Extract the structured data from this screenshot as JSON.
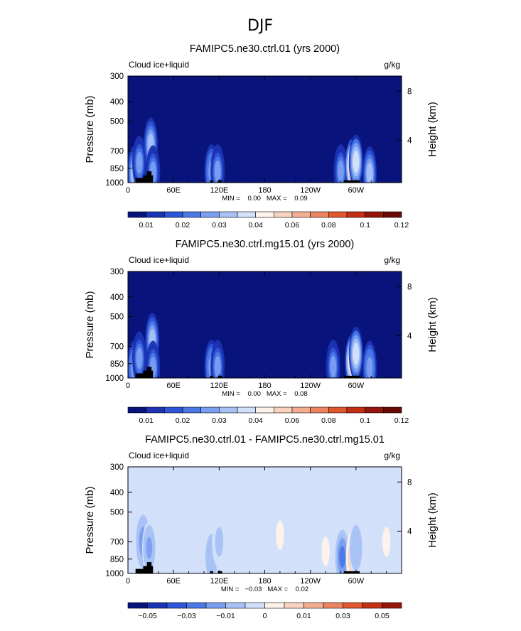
{
  "figure": {
    "title": "DJF",
    "panels": [
      {
        "title": "FAMIPC5.ne30.ctrl.01 (yrs 2000)",
        "left_label": "Cloud ice+liquid",
        "right_label": "g/kg",
        "ylabel": "Pressure (mb)",
        "ylabel_right": "Height (km)",
        "minmax": "MIN =    0.00   MAX =    0.09",
        "colorbar": {
          "tick_labels": [
            "0.01",
            "0.02",
            "0.03",
            "0.04",
            "0.06",
            "0.08",
            "0.1",
            "0.12"
          ],
          "colors": [
            "#08137c",
            "#1b33b4",
            "#2f55d6",
            "#4b78e6",
            "#7b9ff0",
            "#a8c2f5",
            "#d2e0fa",
            "#fdf2ea",
            "#f8d3c0",
            "#f3ad92",
            "#ec8460",
            "#e0562f",
            "#c22f14",
            "#94150b",
            "#6a0a06"
          ]
        }
      },
      {
        "title": "FAMIPC5.ne30.ctrl.mg15.01 (yrs 2000)",
        "left_label": "Cloud ice+liquid",
        "right_label": "g/kg",
        "ylabel": "Pressure (mb)",
        "ylabel_right": "Height (km)",
        "minmax": "MIN =    0.00   MAX =    0.08",
        "colorbar": {
          "tick_labels": [
            "0.01",
            "0.02",
            "0.03",
            "0.04",
            "0.06",
            "0.08",
            "0.1",
            "0.12"
          ],
          "colors": [
            "#08137c",
            "#1b33b4",
            "#2f55d6",
            "#4b78e6",
            "#7b9ff0",
            "#a8c2f5",
            "#d2e0fa",
            "#fdf2ea",
            "#f8d3c0",
            "#f3ad92",
            "#ec8460",
            "#e0562f",
            "#c22f14",
            "#94150b",
            "#6a0a06"
          ]
        }
      },
      {
        "title": "FAMIPC5.ne30.ctrl.01 - FAMIPC5.ne30.ctrl.mg15.01",
        "left_label": "Cloud ice+liquid",
        "right_label": "g/kg",
        "ylabel": "Pressure (mb)",
        "ylabel_right": "Height (km)",
        "minmax": "MIN =   −0.03   MAX =    0.02",
        "colorbar": {
          "tick_labels": [
            "−0.05",
            "−0.03",
            "−0.01",
            "0",
            "0.01",
            "0.03",
            "0.05"
          ],
          "colors": [
            "#08137c",
            "#1b33b4",
            "#2f55d6",
            "#4b78e6",
            "#7b9ff0",
            "#a8c2f5",
            "#d2e0fa",
            "#fdf2ea",
            "#f8d3c0",
            "#f3ad92",
            "#ec8460",
            "#e0562f",
            "#c22f14",
            "#94150b"
          ]
        }
      }
    ]
  },
  "chart_data": [
    {
      "type": "heatmap",
      "title": "FAMIPC5.ne30.ctrl.01 (yrs 2000)",
      "ylabel": "Pressure (mb)",
      "ylabel_right": "Height (km)",
      "xticks": [
        "0",
        "60E",
        "120E",
        "180",
        "120W",
        "60W"
      ],
      "yticks": [
        "300",
        "400",
        "500",
        "700",
        "850",
        "1000"
      ],
      "right_ticks": [
        "8",
        "4"
      ],
      "xlim": [
        0,
        360
      ],
      "ylim": [
        1000,
        300
      ],
      "min": 0.0,
      "max": 0.09,
      "background_value": 0.005,
      "features": [
        {
          "lon": 8,
          "p": 900,
          "value": 0.045
        },
        {
          "lon": 15,
          "p": 800,
          "value": 0.035
        },
        {
          "lon": 30,
          "p": 650,
          "value": 0.05
        },
        {
          "lon": 33,
          "p": 890,
          "value": 0.035
        },
        {
          "lon": 110,
          "p": 880,
          "value": 0.04
        },
        {
          "lon": 118,
          "p": 880,
          "value": 0.035
        },
        {
          "lon": 280,
          "p": 880,
          "value": 0.035
        },
        {
          "lon": 295,
          "p": 830,
          "value": 0.09
        },
        {
          "lon": 300,
          "p": 790,
          "value": 0.06
        },
        {
          "lon": 318,
          "p": 900,
          "value": 0.045
        }
      ],
      "terrain": [
        {
          "lon0": 10,
          "lon1": 28,
          "p_top": 950
        },
        {
          "lon0": 20,
          "lon1": 33,
          "p_top": 920
        },
        {
          "lon0": 25,
          "lon1": 31,
          "p_top": 880
        },
        {
          "lon0": 108,
          "lon1": 112,
          "p_top": 975
        },
        {
          "lon0": 118,
          "lon1": 124,
          "p_top": 975
        },
        {
          "lon0": 284,
          "lon1": 305,
          "p_top": 975
        }
      ]
    },
    {
      "type": "heatmap",
      "title": "FAMIPC5.ne30.ctrl.mg15.01 (yrs 2000)",
      "ylabel": "Pressure (mb)",
      "ylabel_right": "Height (km)",
      "xticks": [
        "0",
        "60E",
        "120E",
        "180",
        "120W",
        "60W"
      ],
      "yticks": [
        "300",
        "400",
        "500",
        "700",
        "850",
        "1000"
      ],
      "right_ticks": [
        "8",
        "4"
      ],
      "xlim": [
        0,
        360
      ],
      "ylim": [
        1000,
        300
      ],
      "min": 0.0,
      "max": 0.08,
      "background_value": 0.005,
      "features": [
        {
          "lon": 8,
          "p": 890,
          "value": 0.04
        },
        {
          "lon": 15,
          "p": 800,
          "value": 0.035
        },
        {
          "lon": 32,
          "p": 650,
          "value": 0.05
        },
        {
          "lon": 33,
          "p": 890,
          "value": 0.035
        },
        {
          "lon": 110,
          "p": 880,
          "value": 0.04
        },
        {
          "lon": 118,
          "p": 880,
          "value": 0.035
        },
        {
          "lon": 270,
          "p": 880,
          "value": 0.035
        },
        {
          "lon": 295,
          "p": 830,
          "value": 0.08
        },
        {
          "lon": 300,
          "p": 760,
          "value": 0.06
        },
        {
          "lon": 318,
          "p": 890,
          "value": 0.04
        }
      ],
      "terrain": [
        {
          "lon0": 10,
          "lon1": 28,
          "p_top": 950
        },
        {
          "lon0": 20,
          "lon1": 33,
          "p_top": 920
        },
        {
          "lon0": 25,
          "lon1": 31,
          "p_top": 880
        },
        {
          "lon0": 108,
          "lon1": 112,
          "p_top": 975
        },
        {
          "lon0": 118,
          "lon1": 124,
          "p_top": 975
        },
        {
          "lon0": 284,
          "lon1": 305,
          "p_top": 975
        }
      ]
    },
    {
      "type": "heatmap",
      "title": "FAMIPC5.ne30.ctrl.01 - FAMIPC5.ne30.ctrl.mg15.01",
      "ylabel": "Pressure (mb)",
      "ylabel_right": "Height (km)",
      "xticks": [
        "0",
        "60E",
        "120E",
        "180",
        "120W",
        "60W"
      ],
      "yticks": [
        "300",
        "400",
        "500",
        "700",
        "850",
        "1000"
      ],
      "right_ticks": [
        "8",
        "4"
      ],
      "xlim": [
        0,
        360
      ],
      "ylim": [
        1000,
        300
      ],
      "min": -0.03,
      "max": 0.02,
      "background_value": -0.005,
      "features": [
        {
          "lon": 20,
          "p": 700,
          "value": -0.025
        },
        {
          "lon": 28,
          "p": 750,
          "value": -0.02
        },
        {
          "lon": 110,
          "p": 830,
          "value": -0.015
        },
        {
          "lon": 120,
          "p": 700,
          "value": -0.01
        },
        {
          "lon": 200,
          "p": 650,
          "value": 0.003
        },
        {
          "lon": 260,
          "p": 780,
          "value": 0.003
        },
        {
          "lon": 282,
          "p": 830,
          "value": -0.03
        },
        {
          "lon": 296,
          "p": 830,
          "value": 0.02
        },
        {
          "lon": 300,
          "p": 750,
          "value": -0.015
        },
        {
          "lon": 340,
          "p": 700,
          "value": 0.003
        }
      ],
      "terrain": [
        {
          "lon0": 10,
          "lon1": 28,
          "p_top": 950
        },
        {
          "lon0": 20,
          "lon1": 33,
          "p_top": 920
        },
        {
          "lon0": 25,
          "lon1": 31,
          "p_top": 880
        },
        {
          "lon0": 108,
          "lon1": 112,
          "p_top": 975
        },
        {
          "lon0": 118,
          "lon1": 124,
          "p_top": 975
        },
        {
          "lon0": 284,
          "lon1": 305,
          "p_top": 975
        }
      ]
    }
  ]
}
